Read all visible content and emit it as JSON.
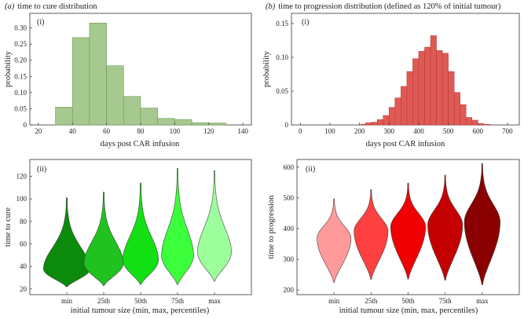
{
  "colors": {
    "cure_bar": "#a6c98f",
    "cure_bar_edge": "#6f9a5a",
    "prog_bar": "#e05a55",
    "prog_bar_edge": "#b53632",
    "cure_violins": [
      "#0b8a0b",
      "#1fc21f",
      "#12e012",
      "#3cff3c",
      "#9cff9c"
    ],
    "prog_violins": [
      "#ff9a9a",
      "#ff4040",
      "#f00000",
      "#c40000",
      "#8a0000"
    ]
  },
  "chart_data": [
    {
      "panel": "a-i",
      "type": "bar",
      "title_letter": "(a)",
      "title": "time to cure distribution",
      "panel_label": "(i)",
      "xlabel": "days post CAR infusion",
      "ylabel": "probability",
      "xlim": [
        15,
        145
      ],
      "ylim": [
        0,
        0.345
      ],
      "xticks": [
        "20",
        "40",
        "60",
        "80",
        "100",
        "120",
        "140"
      ],
      "yticks": [
        "0",
        "0.05",
        "0.10",
        "0.15",
        "0.20",
        "0.25",
        "0.30"
      ],
      "bins": [
        [
          30,
          40
        ],
        [
          40,
          50
        ],
        [
          50,
          60
        ],
        [
          60,
          70
        ],
        [
          70,
          80
        ],
        [
          80,
          90
        ],
        [
          90,
          100
        ],
        [
          100,
          110
        ],
        [
          110,
          120
        ],
        [
          120,
          130
        ]
      ],
      "values": [
        0.055,
        0.27,
        0.315,
        0.183,
        0.088,
        0.052,
        0.02,
        0.017,
        0.007,
        0.006
      ]
    },
    {
      "panel": "b-i",
      "type": "bar",
      "title_letter": "(b)",
      "title": "time to progression distribution (defined as 120% of initial tumour)",
      "panel_label": "(i)",
      "xlabel": "days post CAR infusion",
      "ylabel": "probability",
      "xlim": [
        -30,
        740
      ],
      "ylim": [
        0,
        0.165
      ],
      "xticks": [
        "0",
        "100",
        "200",
        "300",
        "400",
        "500",
        "600",
        "700"
      ],
      "yticks": [
        "0",
        "0.05",
        "0.10",
        "0.15"
      ],
      "bin_start": 0,
      "bin_width": 20,
      "values": [
        0,
        0,
        0,
        0,
        0,
        0,
        0,
        0,
        0,
        0,
        0.001,
        0.003,
        0.004,
        0.008,
        0.014,
        0.026,
        0.04,
        0.057,
        0.079,
        0.098,
        0.109,
        0.115,
        0.132,
        0.11,
        0.106,
        0.079,
        0.048,
        0.03,
        0.011,
        0.007,
        0.002,
        0.001,
        0,
        0,
        0,
        0
      ]
    },
    {
      "panel": "a-ii",
      "type": "violin",
      "panel_label": "(ii)",
      "xlabel": "initial tumour size (min, max, percentiles)",
      "ylabel": "time to cure",
      "ylim": [
        15,
        135
      ],
      "yticks": [
        "20",
        "40",
        "60",
        "80",
        "100",
        "120"
      ],
      "categories": [
        "min",
        "25th",
        "50th",
        "75th",
        "max"
      ],
      "series": [
        {
          "min": 22,
          "mode": 38,
          "max": 101,
          "width": 0.5
        },
        {
          "min": 23,
          "mode": 43,
          "max": 106,
          "width": 0.42
        },
        {
          "min": 24,
          "mode": 46,
          "max": 114,
          "width": 0.38
        },
        {
          "min": 24,
          "mode": 50,
          "max": 127,
          "width": 0.34
        },
        {
          "min": 27,
          "mode": 53,
          "max": 125,
          "width": 0.36
        }
      ]
    },
    {
      "panel": "b-ii",
      "type": "violin",
      "panel_label": "(ii)",
      "xlabel": "initial tumour size (min, max, percentiles)",
      "ylabel": "time to progression",
      "ylim": [
        185,
        625
      ],
      "yticks": [
        "200",
        "300",
        "400",
        "500",
        "600"
      ],
      "categories": [
        "min",
        "25th",
        "50th",
        "75th",
        "max"
      ],
      "series": [
        {
          "min": 225,
          "mode": 370,
          "max": 497,
          "width": 0.36
        },
        {
          "min": 235,
          "mode": 393,
          "max": 527,
          "width": 0.36
        },
        {
          "min": 236,
          "mode": 407,
          "max": 548,
          "width": 0.37
        },
        {
          "min": 232,
          "mode": 413,
          "max": 574,
          "width": 0.37
        },
        {
          "min": 217,
          "mode": 423,
          "max": 612,
          "width": 0.38
        }
      ]
    }
  ]
}
